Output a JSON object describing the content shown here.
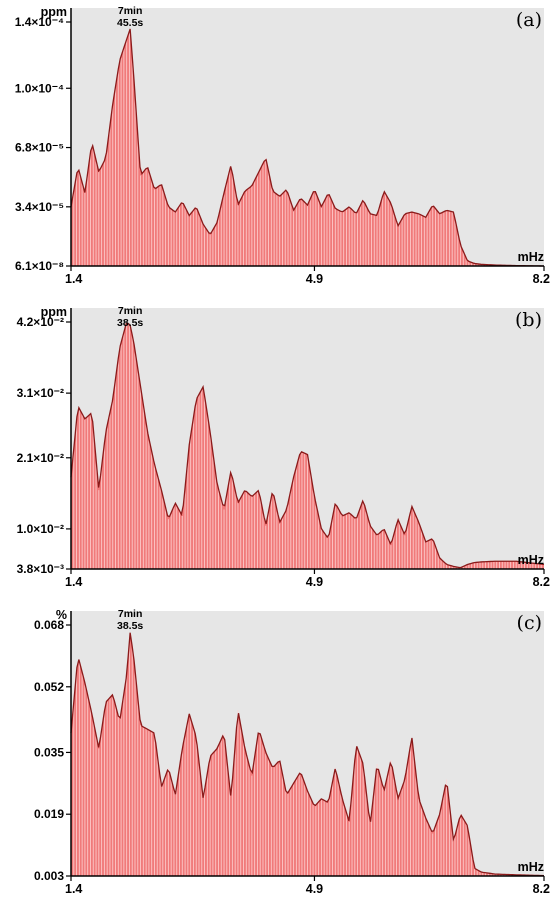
{
  "colors": {
    "background": "#e6e6e6",
    "bar_fill": "#f07a7a",
    "bar_stripe": "#ffd6d6",
    "outline": "#8b1a1a",
    "axis": "#000000"
  },
  "chart_data": [
    {
      "type": "area",
      "panel_label": "(a)",
      "ylabel": "ppm",
      "xlabel": "mHz",
      "x_tick_labels": [
        "1.4",
        "4.9",
        "8.2"
      ],
      "x_ticks": [
        1.4,
        4.9,
        8.2
      ],
      "xlim": [
        1.4,
        8.2
      ],
      "y_tick_labels": [
        "1.4×10⁻⁴",
        "1.0×10⁻⁴",
        "6.8×10⁻⁵",
        "3.4×10⁻⁵",
        "6.1×10⁻⁸"
      ],
      "y_ticks": [
        0.00014,
        0.000102,
        6.8e-05,
        3.4e-05,
        6.1e-08
      ],
      "ylim": [
        6.1e-08,
        0.00014
      ],
      "peak_annotation": [
        "7min",
        "45.5s"
      ],
      "peak_x": 2.25,
      "series": [
        {
          "x": [
            1.4,
            1.5,
            1.6,
            1.7,
            1.8,
            1.9,
            2.0,
            2.1,
            2.2,
            2.25,
            2.3,
            2.4,
            2.5,
            2.6,
            2.7,
            2.8,
            2.9,
            3.0,
            3.1,
            3.2,
            3.3,
            3.4,
            3.5,
            3.6,
            3.7,
            3.8,
            3.9,
            4.0,
            4.1,
            4.2,
            4.3,
            4.4,
            4.5,
            4.6,
            4.7,
            4.8,
            4.9,
            5.0,
            5.1,
            5.2,
            5.3,
            5.4,
            5.5,
            5.6,
            5.7,
            5.8,
            5.9,
            6.0,
            6.1,
            6.2,
            6.3,
            6.4,
            6.5,
            6.6,
            6.7,
            6.8,
            6.9,
            7.0,
            7.1,
            7.2,
            7.3,
            7.5,
            7.8,
            8.2
          ],
          "y": [
            3.4e-05,
            5.7e-05,
            4.2e-05,
            7.1e-05,
            5.4e-05,
            6.2e-05,
            9.3e-05,
            0.000118,
            0.00013,
            0.000136,
            0.00011,
            5.2e-05,
            5.7e-05,
            4.4e-05,
            4.7e-05,
            3.4e-05,
            3.1e-05,
            3.7e-05,
            2.9e-05,
            3.4e-05,
            2.4e-05,
            1.8e-05,
            2.5e-05,
            4.2e-05,
            5.8e-05,
            3.5e-05,
            4.3e-05,
            4.6e-05,
            5.4e-05,
            6.2e-05,
            4.3e-05,
            4e-05,
            4.4e-05,
            3.2e-05,
            3.9e-05,
            3.5e-05,
            4.4e-05,
            3.4e-05,
            4.2e-05,
            3.3e-05,
            3.1e-05,
            3.4e-05,
            3e-05,
            3.8e-05,
            3e-05,
            2.9e-05,
            4.3e-05,
            3.6e-05,
            2.3e-05,
            3e-05,
            3.1e-05,
            3e-05,
            2.8e-05,
            3.5e-05,
            3e-05,
            3.2e-05,
            3.1e-05,
            1.2e-05,
            3e-06,
            1.5e-06,
            1e-06,
            6e-07,
            3e-07,
            6.1e-08
          ]
        }
      ]
    },
    {
      "type": "area",
      "panel_label": "(b)",
      "ylabel": "ppm",
      "xlabel": "mHz",
      "x_tick_labels": [
        "1.4",
        "4.9",
        "8.2"
      ],
      "x_ticks": [
        1.4,
        4.9,
        8.2
      ],
      "xlim": [
        1.4,
        8.2
      ],
      "y_tick_labels": [
        "4.2×10⁻²",
        "3.1×10⁻²",
        "2.1×10⁻²",
        "1.0×10⁻²",
        "3.8×10⁻³"
      ],
      "y_ticks": [
        0.042,
        0.031,
        0.021,
        0.01,
        0.0038
      ],
      "ylim": [
        0.0038,
        0.042
      ],
      "peak_annotation": [
        "7min",
        "38.5s"
      ],
      "peak_x": 2.25,
      "series": [
        {
          "x": [
            1.4,
            1.5,
            1.6,
            1.7,
            1.8,
            1.9,
            2.0,
            2.1,
            2.2,
            2.25,
            2.3,
            2.4,
            2.5,
            2.6,
            2.7,
            2.8,
            2.9,
            3.0,
            3.1,
            3.2,
            3.3,
            3.4,
            3.5,
            3.6,
            3.7,
            3.8,
            3.9,
            4.0,
            4.1,
            4.2,
            4.3,
            4.4,
            4.5,
            4.6,
            4.7,
            4.8,
            4.9,
            5.0,
            5.1,
            5.2,
            5.3,
            5.4,
            5.5,
            5.6,
            5.7,
            5.8,
            5.9,
            6.0,
            6.1,
            6.2,
            6.3,
            6.4,
            6.5,
            6.6,
            6.7,
            6.8,
            6.9,
            7.0,
            7.1,
            7.2,
            7.3,
            7.5,
            7.8,
            8.2
          ],
          "y": [
            0.018,
            0.029,
            0.027,
            0.028,
            0.016,
            0.025,
            0.03,
            0.038,
            0.042,
            0.0415,
            0.039,
            0.032,
            0.025,
            0.02,
            0.016,
            0.0115,
            0.014,
            0.012,
            0.023,
            0.03,
            0.032,
            0.025,
            0.017,
            0.013,
            0.019,
            0.014,
            0.016,
            0.015,
            0.016,
            0.0105,
            0.016,
            0.011,
            0.013,
            0.018,
            0.022,
            0.0215,
            0.015,
            0.01,
            0.0085,
            0.014,
            0.012,
            0.0125,
            0.0115,
            0.0145,
            0.0105,
            0.009,
            0.01,
            0.0075,
            0.0115,
            0.009,
            0.0135,
            0.011,
            0.008,
            0.0085,
            0.0055,
            0.0045,
            0.0042,
            0.004,
            0.0045,
            0.0048,
            0.0049,
            0.005,
            0.005,
            0.0045
          ]
        }
      ]
    },
    {
      "type": "area",
      "panel_label": "(c)",
      "ylabel": "%",
      "xlabel": "mHz",
      "x_tick_labels": [
        "1.4",
        "4.9",
        "8.2"
      ],
      "x_ticks": [
        1.4,
        4.9,
        8.2
      ],
      "xlim": [
        1.4,
        8.2
      ],
      "y_tick_labels": [
        "0.068",
        "0.052",
        "0.035",
        "0.019",
        "0.003"
      ],
      "y_ticks": [
        0.068,
        0.052,
        0.035,
        0.019,
        0.003
      ],
      "ylim": [
        0.003,
        0.068
      ],
      "peak_annotation": [
        "7min",
        "38.5s"
      ],
      "peak_x": 2.25,
      "series": [
        {
          "x": [
            1.4,
            1.5,
            1.6,
            1.7,
            1.8,
            1.9,
            2.0,
            2.1,
            2.2,
            2.25,
            2.3,
            2.4,
            2.5,
            2.6,
            2.7,
            2.8,
            2.9,
            3.0,
            3.1,
            3.2,
            3.3,
            3.4,
            3.5,
            3.6,
            3.7,
            3.8,
            3.9,
            4.0,
            4.1,
            4.2,
            4.3,
            4.4,
            4.5,
            4.6,
            4.7,
            4.8,
            4.9,
            5.0,
            5.1,
            5.2,
            5.3,
            5.4,
            5.5,
            5.6,
            5.7,
            5.8,
            5.9,
            6.0,
            6.1,
            6.2,
            6.3,
            6.4,
            6.5,
            6.6,
            6.7,
            6.8,
            6.9,
            7.0,
            7.1,
            7.2,
            7.3,
            7.5,
            7.8,
            8.2
          ],
          "y": [
            0.04,
            0.06,
            0.053,
            0.045,
            0.036,
            0.048,
            0.05,
            0.043,
            0.055,
            0.066,
            0.06,
            0.042,
            0.041,
            0.04,
            0.026,
            0.031,
            0.024,
            0.036,
            0.045,
            0.039,
            0.023,
            0.034,
            0.036,
            0.04,
            0.023,
            0.046,
            0.036,
            0.029,
            0.041,
            0.035,
            0.031,
            0.033,
            0.024,
            0.027,
            0.03,
            0.025,
            0.021,
            0.023,
            0.022,
            0.031,
            0.023,
            0.017,
            0.037,
            0.032,
            0.016,
            0.032,
            0.025,
            0.033,
            0.023,
            0.028,
            0.039,
            0.023,
            0.018,
            0.014,
            0.019,
            0.028,
            0.012,
            0.019,
            0.016,
            0.005,
            0.004,
            0.0035,
            0.0033,
            0.0031
          ]
        }
      ]
    }
  ]
}
